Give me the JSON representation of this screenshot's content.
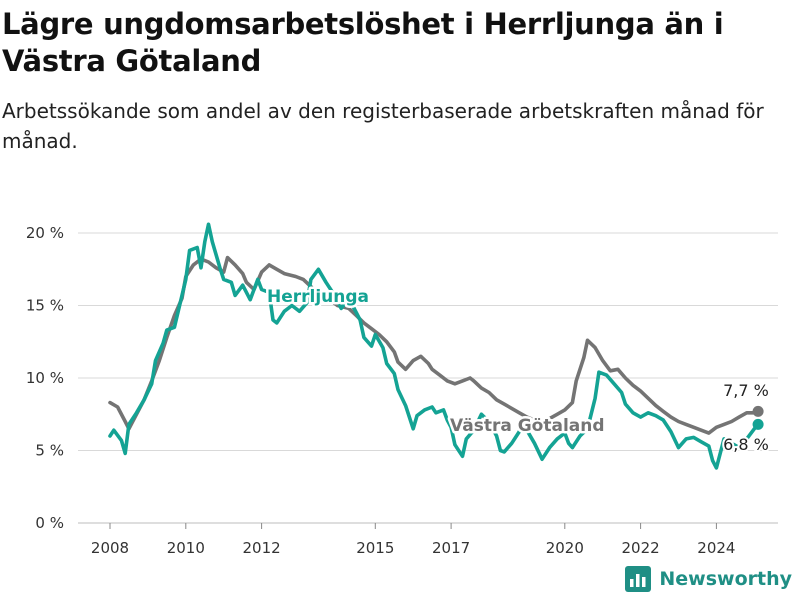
{
  "header": {
    "title": "Lägre ungdomsarbetslöshet i Herrljunga än i Västra Götaland",
    "subtitle": "Arbetssökande som andel av den registerbaserade arbetskraften månad för månad."
  },
  "colors": {
    "herrljunga": "#14a394",
    "vastra_gotaland": "#747474",
    "grid": "#d9d9d9",
    "brand": "#1f8f85"
  },
  "branding": {
    "name": "Newsworthy",
    "icon": "bar-chart-logo-icon"
  },
  "chart_data": {
    "type": "line",
    "title": "Lägre ungdomsarbetslöshet i Herrljunga än i Västra Götaland",
    "subtitle": "Arbetssökande som andel av den registerbaserade arbetskraften månad för månad.",
    "xlabel": "",
    "ylabel": "",
    "x_ticks": [
      2008,
      2010,
      2012,
      2015,
      2017,
      2020,
      2022,
      2024
    ],
    "y_ticks": [
      0,
      5,
      10,
      15,
      20
    ],
    "y_tick_labels": [
      "0 %",
      "5 %",
      "10 %",
      "15 %",
      "20 %"
    ],
    "xlim": [
      2008,
      2025.2
    ],
    "ylim": [
      0,
      21
    ],
    "grid": true,
    "series": [
      {
        "name": "Västra Götaland",
        "end_label": "7,7 %",
        "points": [
          [
            2008.0,
            8.3
          ],
          [
            2008.2,
            8.0
          ],
          [
            2008.4,
            7.0
          ],
          [
            2008.5,
            6.5
          ],
          [
            2008.7,
            7.5
          ],
          [
            2008.9,
            8.5
          ],
          [
            2009.1,
            9.8
          ],
          [
            2009.3,
            11.2
          ],
          [
            2009.5,
            12.8
          ],
          [
            2009.7,
            14.3
          ],
          [
            2009.9,
            15.5
          ],
          [
            2010.0,
            17.0
          ],
          [
            2010.2,
            17.8
          ],
          [
            2010.4,
            18.2
          ],
          [
            2010.6,
            18.0
          ],
          [
            2010.8,
            17.6
          ],
          [
            2011.0,
            17.3
          ],
          [
            2011.1,
            18.3
          ],
          [
            2011.3,
            17.8
          ],
          [
            2011.5,
            17.2
          ],
          [
            2011.6,
            16.6
          ],
          [
            2011.8,
            16.1
          ],
          [
            2012.0,
            17.3
          ],
          [
            2012.2,
            17.8
          ],
          [
            2012.4,
            17.5
          ],
          [
            2012.6,
            17.2
          ],
          [
            2012.9,
            17.0
          ],
          [
            2013.1,
            16.8
          ],
          [
            2013.3,
            16.3
          ],
          [
            2013.5,
            15.8
          ],
          [
            2013.8,
            15.4
          ],
          [
            2014.0,
            15.0
          ],
          [
            2014.3,
            14.8
          ],
          [
            2014.5,
            14.3
          ],
          [
            2014.7,
            13.8
          ],
          [
            2014.9,
            13.4
          ],
          [
            2015.1,
            13.0
          ],
          [
            2015.3,
            12.5
          ],
          [
            2015.5,
            11.8
          ],
          [
            2015.6,
            11.1
          ],
          [
            2015.8,
            10.6
          ],
          [
            2016.0,
            11.2
          ],
          [
            2016.2,
            11.5
          ],
          [
            2016.4,
            11.0
          ],
          [
            2016.5,
            10.6
          ],
          [
            2016.7,
            10.2
          ],
          [
            2016.9,
            9.8
          ],
          [
            2017.1,
            9.6
          ],
          [
            2017.3,
            9.8
          ],
          [
            2017.5,
            10.0
          ],
          [
            2017.6,
            9.8
          ],
          [
            2017.8,
            9.3
          ],
          [
            2018.0,
            9.0
          ],
          [
            2018.2,
            8.5
          ],
          [
            2018.4,
            8.2
          ],
          [
            2018.6,
            7.9
          ],
          [
            2018.8,
            7.6
          ],
          [
            2019.0,
            7.3
          ],
          [
            2019.2,
            7.1
          ],
          [
            2019.4,
            7.0
          ],
          [
            2019.6,
            7.2
          ],
          [
            2019.8,
            7.5
          ],
          [
            2020.0,
            7.8
          ],
          [
            2020.2,
            8.3
          ],
          [
            2020.3,
            9.8
          ],
          [
            2020.5,
            11.4
          ],
          [
            2020.6,
            12.6
          ],
          [
            2020.8,
            12.1
          ],
          [
            2021.0,
            11.2
          ],
          [
            2021.2,
            10.5
          ],
          [
            2021.4,
            10.6
          ],
          [
            2021.6,
            10.0
          ],
          [
            2021.8,
            9.5
          ],
          [
            2022.0,
            9.1
          ],
          [
            2022.2,
            8.6
          ],
          [
            2022.4,
            8.1
          ],
          [
            2022.6,
            7.7
          ],
          [
            2022.8,
            7.3
          ],
          [
            2023.0,
            7.0
          ],
          [
            2023.2,
            6.8
          ],
          [
            2023.4,
            6.6
          ],
          [
            2023.6,
            6.4
          ],
          [
            2023.8,
            6.2
          ],
          [
            2024.0,
            6.6
          ],
          [
            2024.2,
            6.8
          ],
          [
            2024.4,
            7.0
          ],
          [
            2024.6,
            7.3
          ],
          [
            2024.8,
            7.6
          ],
          [
            2025.0,
            7.6
          ],
          [
            2025.1,
            7.7
          ]
        ]
      },
      {
        "name": "Herrljunga",
        "end_label": "6,8 %",
        "points": [
          [
            2008.0,
            6.0
          ],
          [
            2008.1,
            6.4
          ],
          [
            2008.3,
            5.7
          ],
          [
            2008.4,
            4.8
          ],
          [
            2008.5,
            6.8
          ],
          [
            2008.7,
            7.6
          ],
          [
            2008.9,
            8.5
          ],
          [
            2009.1,
            9.6
          ],
          [
            2009.2,
            11.2
          ],
          [
            2009.4,
            12.4
          ],
          [
            2009.5,
            13.3
          ],
          [
            2009.7,
            13.5
          ],
          [
            2009.8,
            14.6
          ],
          [
            2010.0,
            16.8
          ],
          [
            2010.1,
            18.8
          ],
          [
            2010.3,
            19.0
          ],
          [
            2010.4,
            17.6
          ],
          [
            2010.5,
            19.4
          ],
          [
            2010.6,
            20.6
          ],
          [
            2010.7,
            19.4
          ],
          [
            2010.9,
            17.6
          ],
          [
            2011.0,
            16.8
          ],
          [
            2011.2,
            16.6
          ],
          [
            2011.3,
            15.7
          ],
          [
            2011.5,
            16.4
          ],
          [
            2011.7,
            15.4
          ],
          [
            2011.9,
            16.8
          ],
          [
            2012.0,
            16.1
          ],
          [
            2012.2,
            15.9
          ],
          [
            2012.3,
            14.0
          ],
          [
            2012.4,
            13.8
          ],
          [
            2012.6,
            14.6
          ],
          [
            2012.8,
            15.0
          ],
          [
            2013.0,
            14.6
          ],
          [
            2013.2,
            15.2
          ],
          [
            2013.3,
            16.8
          ],
          [
            2013.5,
            17.5
          ],
          [
            2013.7,
            16.6
          ],
          [
            2013.9,
            15.8
          ],
          [
            2014.1,
            14.8
          ],
          [
            2014.3,
            15.5
          ],
          [
            2014.4,
            15.0
          ],
          [
            2014.6,
            14.0
          ],
          [
            2014.7,
            12.8
          ],
          [
            2014.9,
            12.2
          ],
          [
            2015.0,
            13.0
          ],
          [
            2015.2,
            12.1
          ],
          [
            2015.3,
            11.0
          ],
          [
            2015.5,
            10.3
          ],
          [
            2015.6,
            9.2
          ],
          [
            2015.8,
            8.1
          ],
          [
            2016.0,
            6.5
          ],
          [
            2016.1,
            7.4
          ],
          [
            2016.3,
            7.8
          ],
          [
            2016.5,
            8.0
          ],
          [
            2016.6,
            7.6
          ],
          [
            2016.8,
            7.8
          ],
          [
            2016.9,
            7.1
          ],
          [
            2017.0,
            6.6
          ],
          [
            2017.1,
            5.4
          ],
          [
            2017.3,
            4.6
          ],
          [
            2017.4,
            5.8
          ],
          [
            2017.6,
            6.4
          ],
          [
            2017.8,
            7.5
          ],
          [
            2018.0,
            7.0
          ],
          [
            2018.2,
            6.0
          ],
          [
            2018.3,
            5.0
          ],
          [
            2018.4,
            4.9
          ],
          [
            2018.6,
            5.5
          ],
          [
            2018.8,
            6.3
          ],
          [
            2018.9,
            7.1
          ],
          [
            2019.0,
            6.4
          ],
          [
            2019.2,
            5.5
          ],
          [
            2019.4,
            4.4
          ],
          [
            2019.6,
            5.2
          ],
          [
            2019.8,
            5.8
          ],
          [
            2020.0,
            6.2
          ],
          [
            2020.1,
            5.5
          ],
          [
            2020.2,
            5.2
          ],
          [
            2020.4,
            6.0
          ],
          [
            2020.6,
            6.5
          ],
          [
            2020.8,
            8.6
          ],
          [
            2020.9,
            10.4
          ],
          [
            2021.1,
            10.2
          ],
          [
            2021.3,
            9.6
          ],
          [
            2021.5,
            9.0
          ],
          [
            2021.6,
            8.2
          ],
          [
            2021.8,
            7.6
          ],
          [
            2022.0,
            7.3
          ],
          [
            2022.2,
            7.6
          ],
          [
            2022.4,
            7.4
          ],
          [
            2022.6,
            7.1
          ],
          [
            2022.8,
            6.3
          ],
          [
            2023.0,
            5.2
          ],
          [
            2023.2,
            5.8
          ],
          [
            2023.4,
            5.9
          ],
          [
            2023.6,
            5.6
          ],
          [
            2023.8,
            5.3
          ],
          [
            2023.9,
            4.3
          ],
          [
            2024.0,
            3.8
          ],
          [
            2024.2,
            5.8
          ],
          [
            2024.4,
            5.5
          ],
          [
            2024.6,
            5.2
          ],
          [
            2024.8,
            5.8
          ],
          [
            2025.0,
            6.5
          ],
          [
            2025.1,
            6.8
          ]
        ]
      }
    ]
  }
}
